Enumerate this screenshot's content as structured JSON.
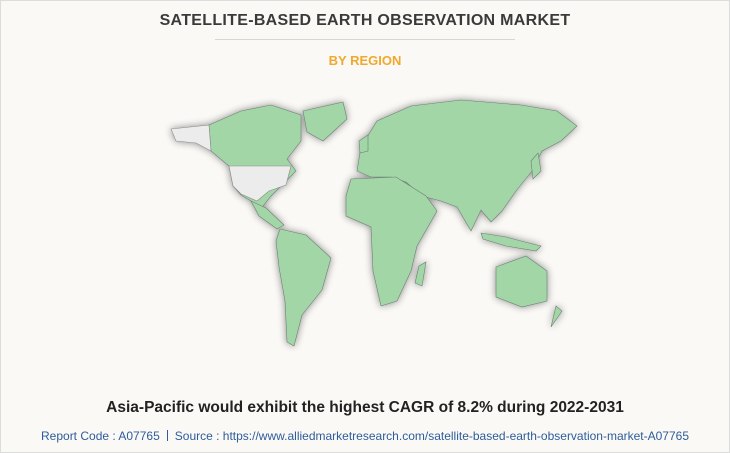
{
  "header": {
    "title": "SATELLITE-BASED EARTH OBSERVATION MARKET",
    "subtitle": "BY REGION"
  },
  "caption": "Asia-Pacific would exhibit the highest CAGR of 8.2% during 2022-2031",
  "footer": {
    "report_code": "Report Code : A07765",
    "source": "Source : https://www.alliedmarketresearch.com/satellite-based-earth-observation-market-A07765"
  }
}
